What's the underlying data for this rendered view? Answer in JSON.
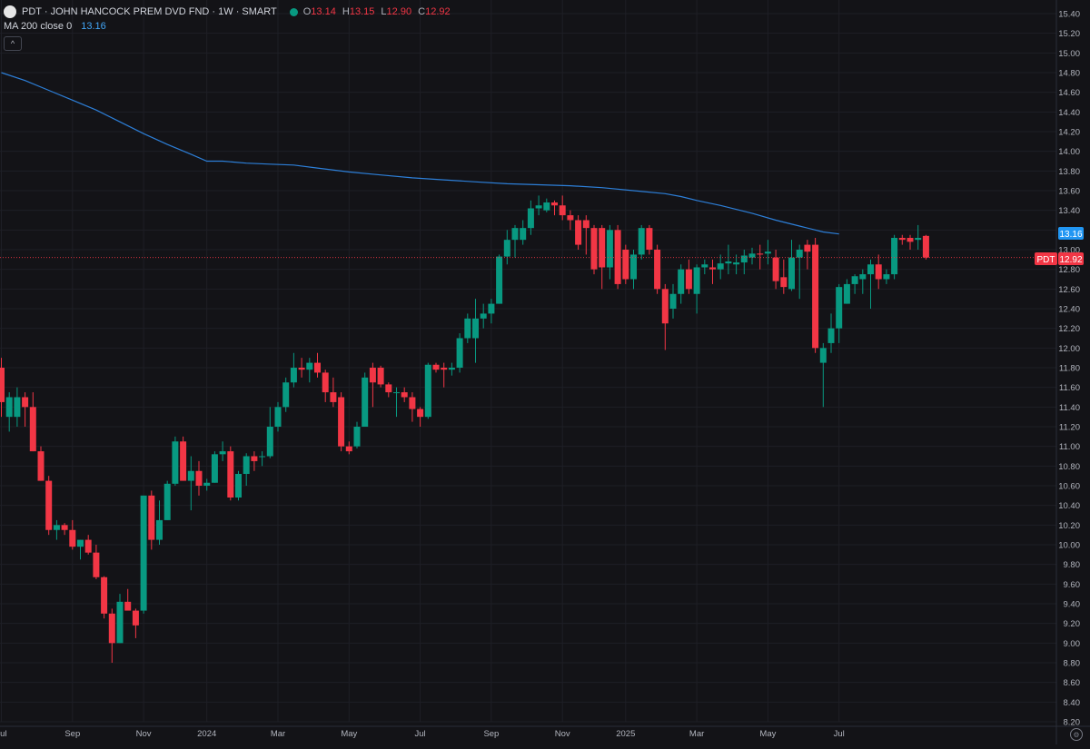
{
  "legend": {
    "title": "PDT · JOHN HANCOCK PREM DVD FND · 1W · SMART",
    "open_label": "O",
    "open": "13.14",
    "high_label": "H",
    "high": "13.15",
    "low_label": "L",
    "low": "12.90",
    "close_label": "C",
    "close": "12.92",
    "ma_label": "MA 200 close 0",
    "ma_value": "13.16",
    "collapse_glyph": "^"
  },
  "price_labels": {
    "ma": "13.16",
    "symbol": "PDT",
    "last": "12.92"
  },
  "colors": {
    "background": "#131317",
    "up": "#089981",
    "down": "#f23645",
    "ma": "#2962ff",
    "grid": "#1e1f26",
    "text": "#d1d4dc"
  },
  "chart_data": {
    "type": "candlestick",
    "interval": "1W",
    "y_axis": {
      "range": [
        8.2,
        15.4
      ],
      "ticks": [
        "8.20",
        "8.40",
        "8.60",
        "8.80",
        "9.00",
        "9.20",
        "9.40",
        "9.60",
        "9.80",
        "10.00",
        "10.20",
        "10.40",
        "10.60",
        "10.80",
        "11.00",
        "11.20",
        "11.40",
        "11.60",
        "11.80",
        "12.00",
        "12.20",
        "12.40",
        "12.60",
        "12.80",
        "13.00",
        "13.20",
        "13.40",
        "13.60",
        "13.80",
        "14.00",
        "14.20",
        "14.40",
        "14.60",
        "14.80",
        "15.00",
        "15.20",
        "15.40"
      ]
    },
    "x_axis": {
      "ticks": [
        {
          "label": "Jul",
          "week": 0
        },
        {
          "label": "Sep",
          "week": 9
        },
        {
          "label": "Nov",
          "week": 18
        },
        {
          "label": "2024",
          "week": 26
        },
        {
          "label": "Mar",
          "week": 35
        },
        {
          "label": "May",
          "week": 44
        },
        {
          "label": "Jul",
          "week": 53
        },
        {
          "label": "Sep",
          "week": 62
        },
        {
          "label": "Nov",
          "week": 71
        },
        {
          "label": "2025",
          "week": 79
        },
        {
          "label": "Mar",
          "week": 88
        },
        {
          "label": "May",
          "week": 97
        },
        {
          "label": "Jul",
          "week": 106
        }
      ]
    },
    "candles": [
      {
        "o": 11.8,
        "h": 11.9,
        "l": 11.3,
        "c": 11.45
      },
      {
        "o": 11.3,
        "h": 11.55,
        "l": 11.15,
        "c": 11.5
      },
      {
        "o": 11.3,
        "h": 11.6,
        "l": 11.2,
        "c": 11.5
      },
      {
        "o": 11.5,
        "h": 11.55,
        "l": 11.2,
        "c": 11.4
      },
      {
        "o": 11.4,
        "h": 11.55,
        "l": 10.95,
        "c": 10.95
      },
      {
        "o": 10.95,
        "h": 11.0,
        "l": 10.65,
        "c": 10.65
      },
      {
        "o": 10.65,
        "h": 10.7,
        "l": 10.1,
        "c": 10.15
      },
      {
        "o": 10.15,
        "h": 10.25,
        "l": 10.05,
        "c": 10.2
      },
      {
        "o": 10.2,
        "h": 10.22,
        "l": 10.1,
        "c": 10.15
      },
      {
        "o": 10.15,
        "h": 10.25,
        "l": 9.95,
        "c": 9.98
      },
      {
        "o": 9.98,
        "h": 10.05,
        "l": 9.85,
        "c": 10.05
      },
      {
        "o": 10.05,
        "h": 10.1,
        "l": 9.9,
        "c": 9.92
      },
      {
        "o": 9.92,
        "h": 10.0,
        "l": 9.65,
        "c": 9.67
      },
      {
        "o": 9.67,
        "h": 9.68,
        "l": 9.25,
        "c": 9.3
      },
      {
        "o": 9.3,
        "h": 9.35,
        "l": 8.8,
        "c": 9.0
      },
      {
        "o": 9.0,
        "h": 9.5,
        "l": 9.0,
        "c": 9.42
      },
      {
        "o": 9.42,
        "h": 9.55,
        "l": 9.35,
        "c": 9.33
      },
      {
        "o": 9.33,
        "h": 9.35,
        "l": 9.05,
        "c": 9.18
      },
      {
        "o": 9.33,
        "h": 10.5,
        "l": 9.3,
        "c": 10.5
      },
      {
        "o": 10.5,
        "h": 10.55,
        "l": 9.95,
        "c": 10.05
      },
      {
        "o": 10.05,
        "h": 10.45,
        "l": 10.0,
        "c": 10.25
      },
      {
        "o": 10.25,
        "h": 10.65,
        "l": 10.25,
        "c": 10.62
      },
      {
        "o": 10.62,
        "h": 11.1,
        "l": 10.6,
        "c": 11.05
      },
      {
        "o": 11.05,
        "h": 11.1,
        "l": 10.65,
        "c": 10.65
      },
      {
        "o": 10.65,
        "h": 10.9,
        "l": 10.35,
        "c": 10.75
      },
      {
        "o": 10.75,
        "h": 10.85,
        "l": 10.5,
        "c": 10.6
      },
      {
        "o": 10.6,
        "h": 10.67,
        "l": 10.55,
        "c": 10.63
      },
      {
        "o": 10.63,
        "h": 10.95,
        "l": 10.63,
        "c": 10.92
      },
      {
        "o": 10.92,
        "h": 11.05,
        "l": 10.85,
        "c": 10.95
      },
      {
        "o": 10.95,
        "h": 11.0,
        "l": 10.45,
        "c": 10.48
      },
      {
        "o": 10.48,
        "h": 10.75,
        "l": 10.45,
        "c": 10.72
      },
      {
        "o": 10.72,
        "h": 10.93,
        "l": 10.6,
        "c": 10.9
      },
      {
        "o": 10.9,
        "h": 10.95,
        "l": 10.75,
        "c": 10.85
      },
      {
        "o": 10.9,
        "h": 10.95,
        "l": 10.8,
        "c": 10.9
      },
      {
        "o": 10.9,
        "h": 11.4,
        "l": 10.88,
        "c": 11.2
      },
      {
        "o": 11.2,
        "h": 11.45,
        "l": 11.15,
        "c": 11.4
      },
      {
        "o": 11.4,
        "h": 11.7,
        "l": 11.35,
        "c": 11.65
      },
      {
        "o": 11.65,
        "h": 11.95,
        "l": 11.6,
        "c": 11.8
      },
      {
        "o": 11.8,
        "h": 11.9,
        "l": 11.7,
        "c": 11.78
      },
      {
        "o": 11.78,
        "h": 11.9,
        "l": 11.65,
        "c": 11.85
      },
      {
        "o": 11.85,
        "h": 11.95,
        "l": 11.7,
        "c": 11.75
      },
      {
        "o": 11.75,
        "h": 11.78,
        "l": 11.45,
        "c": 11.55
      },
      {
        "o": 11.55,
        "h": 11.7,
        "l": 11.4,
        "c": 11.45
      },
      {
        "o": 11.5,
        "h": 11.55,
        "l": 10.95,
        "c": 11.0
      },
      {
        "o": 11.0,
        "h": 11.05,
        "l": 10.92,
        "c": 10.95
      },
      {
        "o": 11.0,
        "h": 11.25,
        "l": 10.98,
        "c": 11.2
      },
      {
        "o": 11.2,
        "h": 11.75,
        "l": 11.2,
        "c": 11.7
      },
      {
        "o": 11.8,
        "h": 11.85,
        "l": 11.4,
        "c": 11.65
      },
      {
        "o": 11.8,
        "h": 11.82,
        "l": 11.6,
        "c": 11.63
      },
      {
        "o": 11.63,
        "h": 11.65,
        "l": 11.5,
        "c": 11.55
      },
      {
        "o": 11.55,
        "h": 11.6,
        "l": 11.3,
        "c": 11.55
      },
      {
        "o": 11.55,
        "h": 11.6,
        "l": 11.45,
        "c": 11.5
      },
      {
        "o": 11.5,
        "h": 11.55,
        "l": 11.25,
        "c": 11.38
      },
      {
        "o": 11.38,
        "h": 11.4,
        "l": 11.2,
        "c": 11.3
      },
      {
        "o": 11.3,
        "h": 11.85,
        "l": 11.28,
        "c": 11.83
      },
      {
        "o": 11.83,
        "h": 11.85,
        "l": 11.75,
        "c": 11.78
      },
      {
        "o": 11.8,
        "h": 11.85,
        "l": 11.6,
        "c": 11.78
      },
      {
        "o": 11.78,
        "h": 11.85,
        "l": 11.72,
        "c": 11.8
      },
      {
        "o": 11.8,
        "h": 12.15,
        "l": 11.75,
        "c": 12.1
      },
      {
        "o": 12.1,
        "h": 12.35,
        "l": 12.05,
        "c": 12.3
      },
      {
        "o": 12.1,
        "h": 12.5,
        "l": 11.85,
        "c": 12.3
      },
      {
        "o": 12.3,
        "h": 12.45,
        "l": 12.2,
        "c": 12.35
      },
      {
        "o": 12.35,
        "h": 12.5,
        "l": 12.25,
        "c": 12.45
      },
      {
        "o": 12.45,
        "h": 12.95,
        "l": 12.45,
        "c": 12.93
      },
      {
        "o": 12.93,
        "h": 13.2,
        "l": 12.85,
        "c": 13.1
      },
      {
        "o": 13.1,
        "h": 13.25,
        "l": 12.92,
        "c": 13.22
      },
      {
        "o": 13.1,
        "h": 13.3,
        "l": 13.05,
        "c": 13.22
      },
      {
        "o": 13.22,
        "h": 13.5,
        "l": 13.15,
        "c": 13.42
      },
      {
        "o": 13.42,
        "h": 13.55,
        "l": 13.35,
        "c": 13.45
      },
      {
        "o": 13.4,
        "h": 13.52,
        "l": 13.38,
        "c": 13.48
      },
      {
        "o": 13.48,
        "h": 13.5,
        "l": 13.35,
        "c": 13.45
      },
      {
        "o": 13.45,
        "h": 13.55,
        "l": 13.3,
        "c": 13.35
      },
      {
        "o": 13.35,
        "h": 13.4,
        "l": 13.2,
        "c": 13.3
      },
      {
        "o": 13.3,
        "h": 13.35,
        "l": 13.0,
        "c": 13.05
      },
      {
        "o": 13.3,
        "h": 13.35,
        "l": 12.95,
        "c": 13.22
      },
      {
        "o": 13.22,
        "h": 13.25,
        "l": 12.75,
        "c": 12.8
      },
      {
        "o": 13.22,
        "h": 13.25,
        "l": 12.6,
        "c": 12.82
      },
      {
        "o": 12.82,
        "h": 13.25,
        "l": 12.7,
        "c": 13.2
      },
      {
        "o": 13.2,
        "h": 13.25,
        "l": 12.6,
        "c": 12.65
      },
      {
        "o": 13.0,
        "h": 13.05,
        "l": 12.65,
        "c": 12.7
      },
      {
        "o": 12.7,
        "h": 13.0,
        "l": 12.6,
        "c": 12.95
      },
      {
        "o": 12.95,
        "h": 13.25,
        "l": 12.9,
        "c": 13.22
      },
      {
        "o": 13.22,
        "h": 13.25,
        "l": 12.95,
        "c": 13.0
      },
      {
        "o": 13.0,
        "h": 13.05,
        "l": 12.55,
        "c": 12.6
      },
      {
        "o": 12.6,
        "h": 12.65,
        "l": 11.98,
        "c": 12.25
      },
      {
        "o": 12.4,
        "h": 12.65,
        "l": 12.3,
        "c": 12.55
      },
      {
        "o": 12.55,
        "h": 12.85,
        "l": 12.45,
        "c": 12.8
      },
      {
        "o": 12.8,
        "h": 12.9,
        "l": 12.55,
        "c": 12.6
      },
      {
        "o": 12.55,
        "h": 12.85,
        "l": 12.35,
        "c": 12.82
      },
      {
        "o": 12.82,
        "h": 12.9,
        "l": 12.75,
        "c": 12.85
      },
      {
        "o": 12.82,
        "h": 12.9,
        "l": 12.65,
        "c": 12.8
      },
      {
        "o": 12.8,
        "h": 12.95,
        "l": 12.7,
        "c": 12.86
      },
      {
        "o": 12.86,
        "h": 13.05,
        "l": 12.75,
        "c": 12.88
      },
      {
        "o": 12.85,
        "h": 12.95,
        "l": 12.75,
        "c": 12.87
      },
      {
        "o": 12.87,
        "h": 13.0,
        "l": 12.75,
        "c": 12.94
      },
      {
        "o": 12.92,
        "h": 13.02,
        "l": 12.85,
        "c": 12.96
      },
      {
        "o": 12.96,
        "h": 13.05,
        "l": 12.8,
        "c": 12.95
      },
      {
        "o": 12.96,
        "h": 13.1,
        "l": 12.85,
        "c": 12.98
      },
      {
        "o": 12.92,
        "h": 13.0,
        "l": 12.6,
        "c": 12.68
      },
      {
        "o": 12.72,
        "h": 12.9,
        "l": 12.55,
        "c": 12.62
      },
      {
        "o": 12.6,
        "h": 13.1,
        "l": 12.58,
        "c": 12.92
      },
      {
        "o": 12.92,
        "h": 13.05,
        "l": 12.5,
        "c": 13.0
      },
      {
        "o": 13.05,
        "h": 13.1,
        "l": 12.8,
        "c": 12.98
      },
      {
        "o": 13.05,
        "h": 13.12,
        "l": 11.95,
        "c": 12.0
      },
      {
        "o": 11.85,
        "h": 12.05,
        "l": 11.4,
        "c": 12.0
      },
      {
        "o": 12.05,
        "h": 12.35,
        "l": 11.95,
        "c": 12.2
      },
      {
        "o": 12.2,
        "h": 12.65,
        "l": 12.05,
        "c": 12.62
      },
      {
        "o": 12.45,
        "h": 12.7,
        "l": 12.45,
        "c": 12.65
      },
      {
        "o": 12.65,
        "h": 12.75,
        "l": 12.55,
        "c": 12.73
      },
      {
        "o": 12.7,
        "h": 12.8,
        "l": 12.55,
        "c": 12.75
      },
      {
        "o": 12.75,
        "h": 12.9,
        "l": 12.4,
        "c": 12.85
      },
      {
        "o": 12.85,
        "h": 12.95,
        "l": 12.6,
        "c": 12.7
      },
      {
        "o": 12.7,
        "h": 12.8,
        "l": 12.65,
        "c": 12.75
      },
      {
        "o": 12.75,
        "h": 13.15,
        "l": 12.7,
        "c": 13.12
      },
      {
        "o": 13.12,
        "h": 13.15,
        "l": 13.05,
        "c": 13.1
      },
      {
        "o": 13.12,
        "h": 13.15,
        "l": 13.0,
        "c": 13.08
      },
      {
        "o": 13.1,
        "h": 13.25,
        "l": 13.0,
        "c": 13.12
      },
      {
        "o": 13.14,
        "h": 13.15,
        "l": 12.9,
        "c": 12.92
      }
    ],
    "ma_series": {
      "name": "MA 200 close 0",
      "points": [
        [
          0,
          14.8
        ],
        [
          3,
          14.72
        ],
        [
          6,
          14.62
        ],
        [
          9,
          14.52
        ],
        [
          12,
          14.42
        ],
        [
          15,
          14.3
        ],
        [
          18,
          14.18
        ],
        [
          21,
          14.07
        ],
        [
          24,
          13.97
        ],
        [
          26,
          13.9
        ],
        [
          28,
          13.9
        ],
        [
          31,
          13.88
        ],
        [
          34,
          13.87
        ],
        [
          37,
          13.86
        ],
        [
          40,
          13.83
        ],
        [
          44,
          13.79
        ],
        [
          48,
          13.76
        ],
        [
          52,
          13.73
        ],
        [
          56,
          13.71
        ],
        [
          60,
          13.69
        ],
        [
          64,
          13.67
        ],
        [
          68,
          13.66
        ],
        [
          72,
          13.65
        ],
        [
          76,
          13.63
        ],
        [
          80,
          13.6
        ],
        [
          84,
          13.57
        ],
        [
          86,
          13.54
        ],
        [
          88,
          13.5
        ],
        [
          91,
          13.45
        ],
        [
          95,
          13.37
        ],
        [
          98,
          13.3
        ],
        [
          101,
          13.24
        ],
        [
          104,
          13.18
        ],
        [
          106,
          13.16
        ]
      ]
    }
  }
}
